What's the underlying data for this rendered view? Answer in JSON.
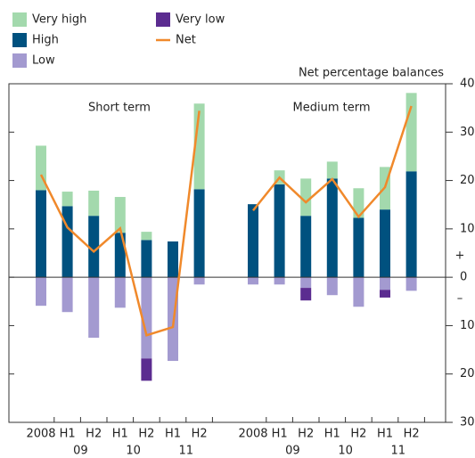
{
  "chart_data": {
    "type": "bar",
    "y_axis_label": "Net percentage balances",
    "sign_labels": [
      "+",
      "–"
    ],
    "ylim": [
      -30,
      40
    ],
    "yticks": [
      40,
      30,
      20,
      10,
      0,
      {
        "value": -10,
        "label": "10"
      },
      {
        "value": -20,
        "label": "20"
      },
      {
        "value": -30,
        "label": "30"
      }
    ],
    "panels": [
      "Short term",
      "Medium term"
    ],
    "categories": [
      "2008",
      "H1",
      "H2",
      "H1",
      "H2",
      "H1",
      "H2",
      "2008",
      "H1",
      "H2",
      "H1",
      "H2",
      "H1",
      "H2"
    ],
    "year_labels": [
      "09",
      "10",
      "11",
      "09",
      "10",
      "11"
    ],
    "series": [
      {
        "name": "Very high",
        "color": "#a3d9ad",
        "values": [
          9.2,
          3,
          5.2,
          7.4,
          1.7,
          0,
          17.7,
          0,
          2.9,
          7.7,
          3.5,
          6.1,
          8.8,
          16.2
        ]
      },
      {
        "name": "High",
        "color": "#00517f",
        "values": [
          18,
          14.7,
          12.7,
          9.2,
          7.7,
          7.4,
          18.2,
          15.1,
          19.2,
          12.7,
          20.4,
          12.3,
          14,
          21.9
        ]
      },
      {
        "name": "Low",
        "color": "#a39ad0",
        "values": [
          -5.9,
          -7.2,
          -12.5,
          -6.3,
          -16.8,
          -17.3,
          -1.5,
          -1.5,
          -1.5,
          -2.2,
          -3.7,
          -6.1,
          -2.6,
          -2.8
        ]
      },
      {
        "name": "Very low",
        "color": "#5b2c90",
        "values": [
          0,
          0,
          0,
          0,
          -4.6,
          0,
          0,
          0,
          0,
          -2.6,
          0,
          0,
          -1.6,
          0
        ]
      },
      {
        "name": "Net",
        "color": "#f0892b",
        "values": [
          21.2,
          10.3,
          5.3,
          10.1,
          -12,
          -10.3,
          34.4,
          13.8,
          20.6,
          15.5,
          20.3,
          12.5,
          18.6,
          35.4
        ]
      }
    ]
  }
}
